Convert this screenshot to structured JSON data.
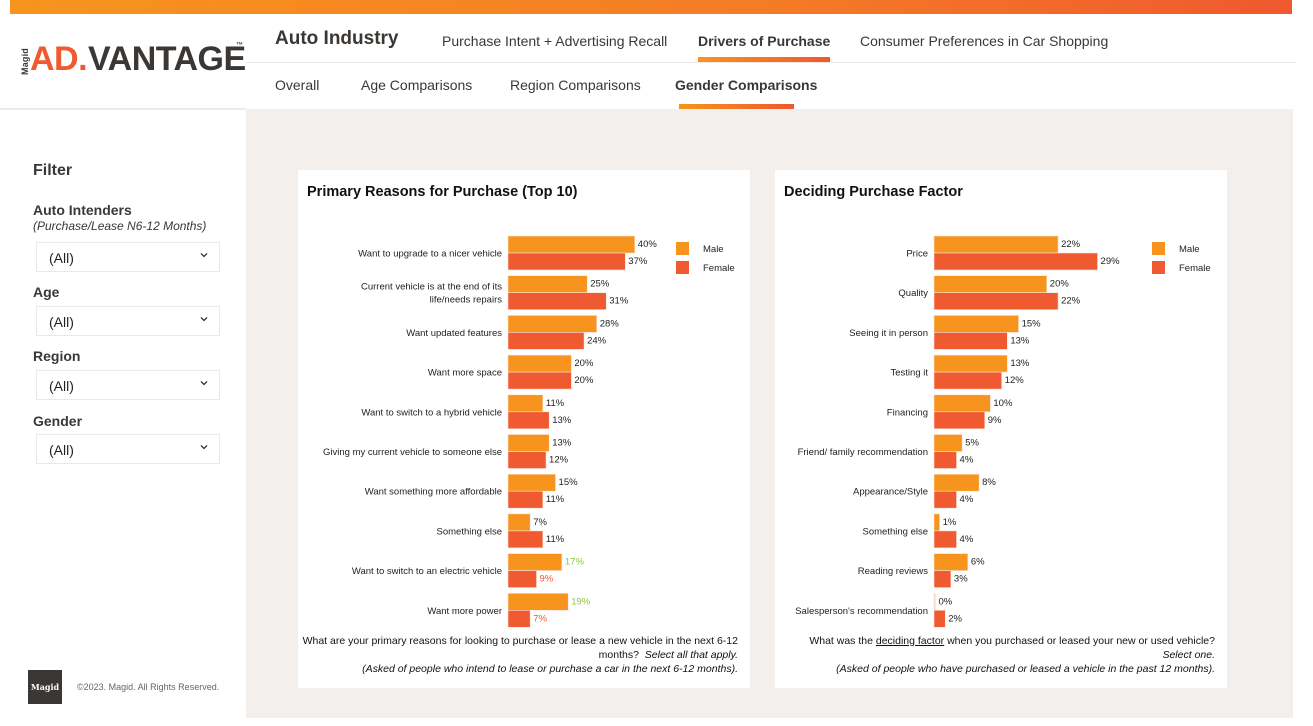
{
  "brand": {
    "magid": "Magid",
    "ad": "AD.",
    "vantage": "VANTAGE",
    "tm": "™"
  },
  "nav": {
    "title": "Auto Industry",
    "primary": [
      {
        "label": "Purchase Intent + Advertising Recall",
        "active": false
      },
      {
        "label": "Drivers of Purchase",
        "active": true
      },
      {
        "label": "Consumer Preferences in Car Shopping",
        "active": false
      }
    ],
    "secondary": [
      {
        "label": "Overall",
        "active": false
      },
      {
        "label": "Age Comparisons",
        "active": false
      },
      {
        "label": "Region Comparisons",
        "active": false
      },
      {
        "label": "Gender Comparisons",
        "active": true
      }
    ]
  },
  "filter": {
    "title": "Filter",
    "fields": [
      {
        "label": "Auto Intenders",
        "sublabel": "(Purchase/Lease N6-12 Months)",
        "value": "(All)"
      },
      {
        "label": "Age",
        "value": "(All)"
      },
      {
        "label": "Region",
        "value": "(All)"
      },
      {
        "label": "Gender",
        "value": "(All)"
      }
    ]
  },
  "footer": {
    "logo": "Magid",
    "copyright": "©2023. Magid. All Rights Reserved."
  },
  "colors": {
    "male": "#f7941d",
    "female": "#f05a30",
    "highlight_up": "#8dc63f",
    "highlight_down": "#f05a30"
  },
  "chart_data": [
    {
      "type": "bar",
      "orientation": "horizontal",
      "title": "Primary Reasons for Purchase (Top 10)",
      "categories": [
        "Want to upgrade to a nicer vehicle",
        "Current vehicle is at the end of its\nlife/needs repairs",
        "Want updated features",
        "Want more space",
        "Want to switch to a hybrid vehicle",
        "Giving my current vehicle to someone else",
        "Want something more affordable",
        "Something else",
        "Want to switch to an electric vehicle",
        "Want more power"
      ],
      "series": [
        {
          "name": "Male",
          "values": [
            40,
            25,
            28,
            20,
            11,
            13,
            15,
            7,
            17,
            19
          ]
        },
        {
          "name": "Female",
          "values": [
            37,
            31,
            24,
            20,
            13,
            12,
            11,
            11,
            9,
            7
          ]
        }
      ],
      "highlights": {
        "8": "significant",
        "9": "significant"
      },
      "value_format": "percent",
      "legend": "top-right",
      "xlim": [
        0,
        45
      ],
      "note": {
        "question": "What are your primary reasons for looking to purchase or lease a new vehicle in the next 6-12 months?",
        "instruction": "Select all that apply.",
        "base": "(Asked of people who intend to lease or purchase a car in the next 6-12 months)."
      }
    },
    {
      "type": "bar",
      "orientation": "horizontal",
      "title": "Deciding Purchase Factor",
      "categories": [
        "Price",
        "Quality",
        "Seeing it in person",
        "Testing it",
        "Financing",
        "Friend/ family recommendation",
        "Appearance/Style",
        "Something else",
        "Reading reviews",
        "Salesperson's recommendation"
      ],
      "series": [
        {
          "name": "Male",
          "values": [
            22,
            20,
            15,
            13,
            10,
            5,
            8,
            1,
            6,
            0
          ]
        },
        {
          "name": "Female",
          "values": [
            29,
            22,
            13,
            12,
            9,
            4,
            4,
            4,
            3,
            2
          ]
        }
      ],
      "highlights": {},
      "value_format": "percent",
      "legend": "top-right",
      "xlim": [
        0,
        30
      ],
      "note": {
        "question_pre": "What was the ",
        "question_u": "deciding factor",
        "question_post": " when you purchased or leased your new or used vehicle?",
        "instruction": "Select one.",
        "base": "(Asked of people who have purchased or leased a vehicle in the past 12 months)."
      }
    }
  ]
}
